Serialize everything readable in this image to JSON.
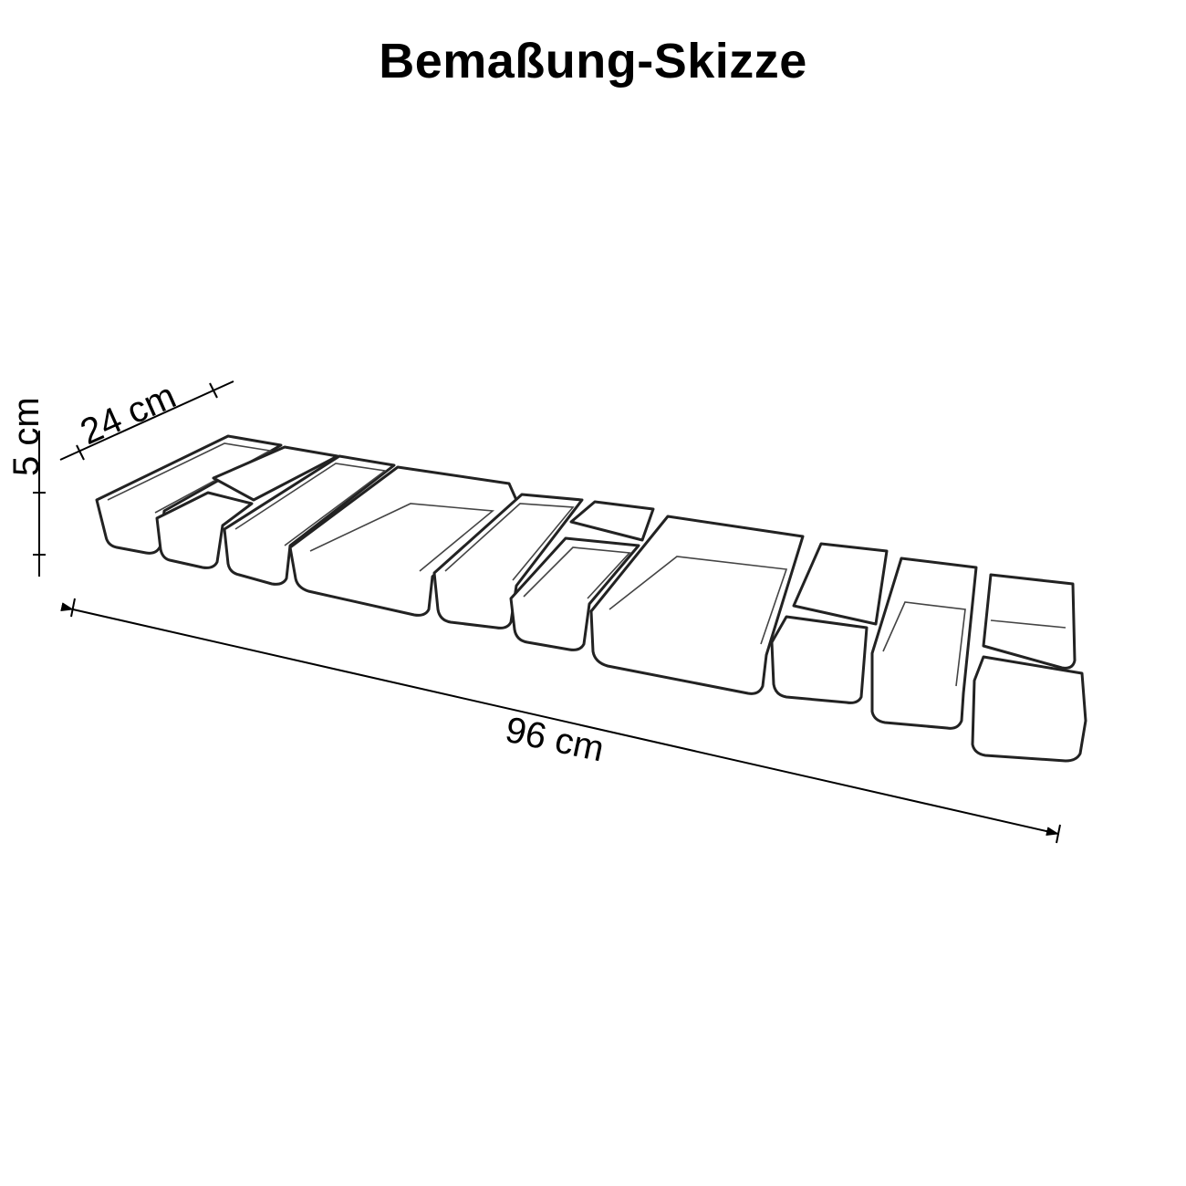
{
  "title": "Bemaßung-Skizze",
  "dimensions": {
    "height": "5 cm",
    "depth": "24 cm",
    "length": "96 cm"
  }
}
